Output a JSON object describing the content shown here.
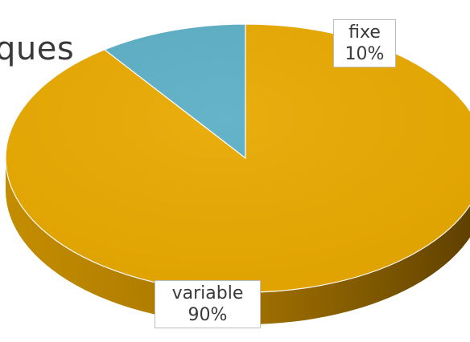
{
  "title_partial": "ques",
  "chart_data": {
    "type": "pie",
    "style": "3d",
    "slices": [
      {
        "label": "fixe",
        "value": 10,
        "percent_label": "10%",
        "color": "#5cafc6"
      },
      {
        "label": "variable",
        "value": 90,
        "percent_label": "90%",
        "color": "#e8a900"
      }
    ]
  }
}
